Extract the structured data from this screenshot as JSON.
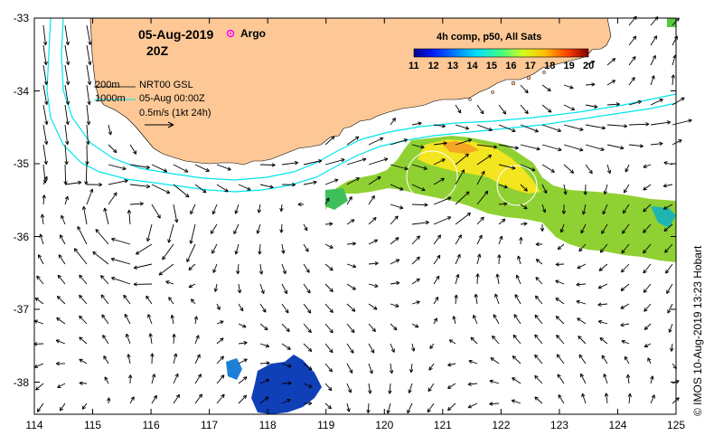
{
  "map": {
    "date": "05-Aug-2019",
    "time": "20Z",
    "argo_label": "Argo",
    "colorbar_title": "4h comp, p50, All Sats",
    "colorbar_ticks": [
      "11",
      "12",
      "13",
      "14",
      "15",
      "16",
      "17",
      "18",
      "19",
      "20"
    ],
    "colorbar_range": [
      11,
      20
    ],
    "contour_200_label": "200m",
    "contour_1000_label": "1000m",
    "info_line1": "NRT00 GSL",
    "info_line2": "05-Aug 00:00Z",
    "info_line3": "0.5m/s (1kt 24h)",
    "credit": "© IMOS 10-Aug-2019 13:23 Hobart",
    "lat_ticks": [
      "-33",
      "-34",
      "-35",
      "-36",
      "-37",
      "-38"
    ],
    "lon_ticks": [
      "114",
      "115",
      "116",
      "117",
      "118",
      "119",
      "120",
      "121",
      "122",
      "123",
      "124",
      "125"
    ],
    "lon_range": [
      114,
      125
    ],
    "lat_range": [
      -38.5,
      -33
    ],
    "colors": {
      "land": "#fdc896",
      "contour": "#00e5ee",
      "argo": "#ff00ff"
    }
  }
}
